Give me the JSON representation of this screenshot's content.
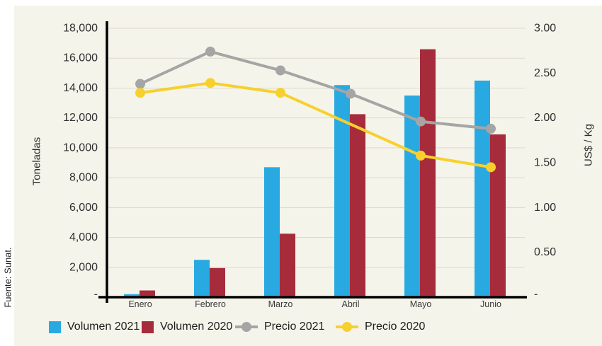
{
  "source": "Fuente: Sunat.",
  "chart_data": {
    "type": "combo-bar-line",
    "title": "",
    "categories": [
      "Enero",
      "Febrero",
      "Marzo",
      "Abril",
      "Mayo",
      "Junio"
    ],
    "series": [
      {
        "name": "Volumen 2021",
        "type": "bar",
        "axis": "left",
        "color": "#29A9E1",
        "values": [
          200,
          2500,
          8700,
          14200,
          13500,
          14500
        ]
      },
      {
        "name": "Volumen 2020",
        "type": "bar",
        "axis": "left",
        "color": "#A62C3B",
        "values": [
          450,
          1950,
          4250,
          12250,
          16600,
          10900
        ]
      },
      {
        "name": "Precio 2021",
        "type": "line",
        "axis": "right",
        "color": "#A5A5A5",
        "values": [
          2.38,
          2.74,
          2.53,
          2.27,
          1.96,
          1.88
        ]
      },
      {
        "name": "Precio 2020",
        "type": "line",
        "axis": "right",
        "color": "#F7D02E",
        "values": [
          2.28,
          2.39,
          2.28,
          null,
          1.58,
          1.45
        ]
      }
    ],
    "y_left": {
      "title": "Toneladas",
      "max": 18000,
      "step": 2000,
      "tick_labels": [
        "18,000",
        "16,000",
        "14,000",
        "12,000",
        "10,000",
        "8,000",
        "6,000",
        "4,000",
        "2,000",
        "-"
      ]
    },
    "y_right": {
      "title": "US$ / Kg",
      "max": 3,
      "step": 0.5,
      "tick_labels": [
        "3.00",
        "2.50",
        "2.00",
        "1.50",
        "1.00",
        "0.50",
        "-"
      ]
    },
    "grid": true,
    "legend_position": "bottom",
    "background": "#F5F4EA",
    "axis_color": "#000000",
    "gridline_color": "#DBD9CE",
    "tick_color": "#2e2e2e"
  }
}
